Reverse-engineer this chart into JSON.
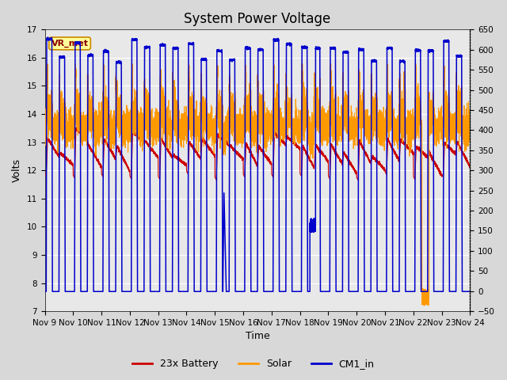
{
  "title": "System Power Voltage",
  "xlabel": "Time",
  "ylabel": "Volts",
  "ylim_left": [
    7.0,
    17.0
  ],
  "ylim_right": [
    -50,
    650
  ],
  "yticks_left": [
    7.0,
    8.0,
    9.0,
    10.0,
    11.0,
    12.0,
    13.0,
    14.0,
    15.0,
    16.0,
    17.0
  ],
  "yticks_right": [
    -50,
    0,
    50,
    100,
    150,
    200,
    250,
    300,
    350,
    400,
    450,
    500,
    550,
    600,
    650
  ],
  "xtick_labels": [
    "Nov 9",
    "Nov 10",
    "Nov 11",
    "Nov 12",
    "Nov 13",
    "Nov 14",
    "Nov 15",
    "Nov 16",
    "Nov 17",
    "Nov 18",
    "Nov 19",
    "Nov 20",
    "Nov 21",
    "Nov 22",
    "Nov 23",
    "Nov 24"
  ],
  "legend_labels": [
    "23x Battery",
    "Solar",
    "CM1_in"
  ],
  "legend_colors": [
    "#cc0000",
    "#ff9900",
    "#0000cc"
  ],
  "vr_met_label": "VR_met",
  "vr_met_text_color": "#8b0000",
  "vr_met_edge_color": "#cc8800",
  "vr_met_bg": "#ffff99",
  "figure_bg": "#d8d8d8",
  "plot_bg": "#e8e8e8",
  "grid_color": "#ffffff",
  "title_fontsize": 12,
  "label_fontsize": 9,
  "tick_fontsize": 7.5,
  "n_days": 15,
  "blue_low": 7.7,
  "blue_high_range": [
    16.0,
    16.7
  ]
}
